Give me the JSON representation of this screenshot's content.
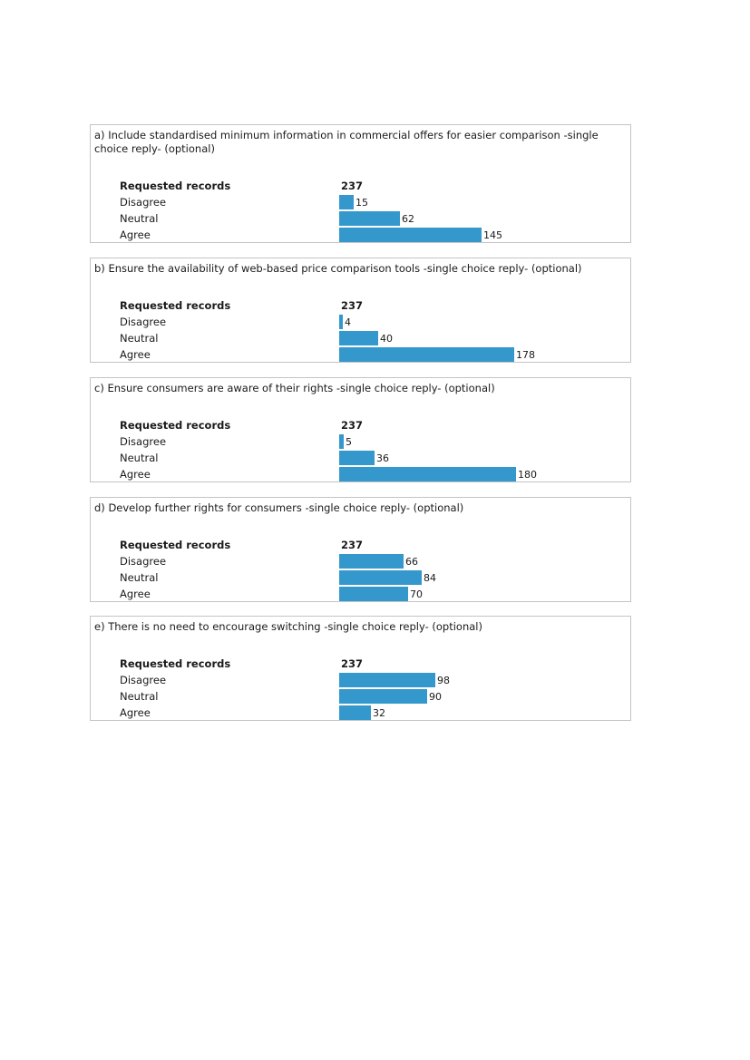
{
  "chart_data": [
    {
      "type": "bar",
      "title": "a) Include standardised minimum information in commercial offers for easier comparison -single choice reply- (optional)",
      "total_label": "Requested records",
      "total": 237,
      "categories": [
        "Disagree",
        "Neutral",
        "Agree"
      ],
      "values": [
        15,
        62,
        145
      ],
      "color": "#3598cd"
    },
    {
      "type": "bar",
      "title": "b) Ensure the availability of web-based price comparison tools -single choice reply- (optional)",
      "total_label": "Requested records",
      "total": 237,
      "categories": [
        "Disagree",
        "Neutral",
        "Agree"
      ],
      "values": [
        4,
        40,
        178
      ],
      "color": "#3598cd"
    },
    {
      "type": "bar",
      "title": "c) Ensure consumers are aware of their rights -single choice reply- (optional)",
      "total_label": "Requested records",
      "total": 237,
      "categories": [
        "Disagree",
        "Neutral",
        "Agree"
      ],
      "values": [
        5,
        36,
        180
      ],
      "color": "#3598cd"
    },
    {
      "type": "bar",
      "title": "d) Develop further rights for consumers -single choice reply- (optional)",
      "total_label": "Requested records",
      "total": 237,
      "categories": [
        "Disagree",
        "Neutral",
        "Agree"
      ],
      "values": [
        66,
        84,
        70
      ],
      "color": "#3598cd"
    },
    {
      "type": "bar",
      "title": "e) There is no need to encourage switching -single choice reply- (optional)",
      "total_label": "Requested records",
      "total": 237,
      "categories": [
        "Disagree",
        "Neutral",
        "Agree"
      ],
      "values": [
        98,
        90,
        32
      ],
      "color": "#3598cd"
    }
  ]
}
